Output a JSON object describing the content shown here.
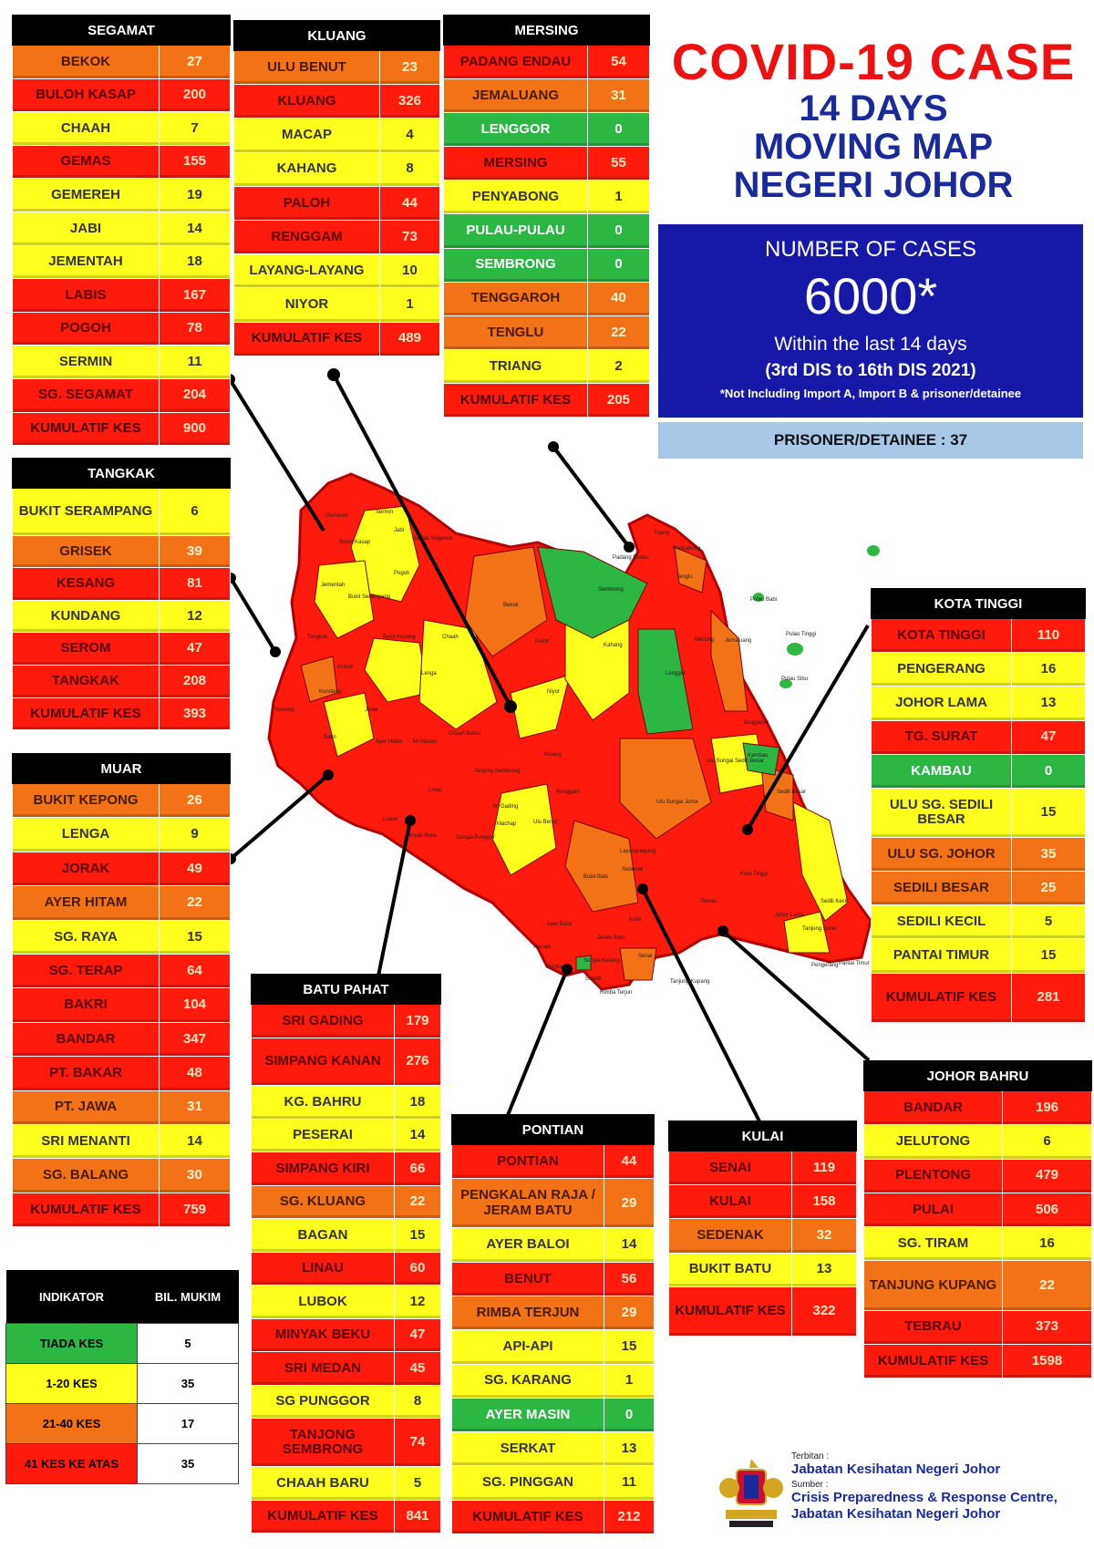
{
  "title": {
    "line1": "COVID-19 CASE",
    "line2": "14 DAYS",
    "line3": "MOVING MAP",
    "line4": "NEGERI JOHOR"
  },
  "number_box": {
    "heading": "NUMBER OF CASES",
    "count": "6000*",
    "period": "Within the last 14 days",
    "range": "(3rd DIS to 16th DIS 2021)",
    "note": "*Not Including Import A, Import B & prisoner/detainee"
  },
  "prisoner": "PRISONER/DETAINEE : 37",
  "colors": {
    "green": "#2cb642",
    "yellow": "#ffff1e",
    "orange": "#f47216",
    "red": "#ff1a0e",
    "box_blue": "#1717a8",
    "title_red": "#ee1111",
    "title_blue": "#1b2a9a"
  },
  "districts": [
    {
      "id": "segamat",
      "name": "SEGAMAT",
      "rows": [
        {
          "name": "BEKOK",
          "value": "27",
          "level": "orange"
        },
        {
          "name": "BULOH KASAP",
          "value": "200",
          "level": "red"
        },
        {
          "name": "CHAAH",
          "value": "7",
          "level": "yellow"
        },
        {
          "name": "GEMAS",
          "value": "155",
          "level": "red"
        },
        {
          "name": "GEMEREH",
          "value": "19",
          "level": "yellow"
        },
        {
          "name": "JABI",
          "value": "14",
          "level": "yellow"
        },
        {
          "name": "JEMENTAH",
          "value": "18",
          "level": "yellow"
        },
        {
          "name": "LABIS",
          "value": "167",
          "level": "red"
        },
        {
          "name": "POGOH",
          "value": "78",
          "level": "red"
        },
        {
          "name": "SERMIN",
          "value": "11",
          "level": "yellow"
        },
        {
          "name": "SG. SEGAMAT",
          "value": "204",
          "level": "red"
        }
      ],
      "total_label": "KUMULATIF KES",
      "total": "900"
    },
    {
      "id": "kluang",
      "name": "KLUANG",
      "rows": [
        {
          "name": "ULU BENUT",
          "value": "23",
          "level": "orange"
        },
        {
          "name": "KLUANG",
          "value": "326",
          "level": "red"
        },
        {
          "name": "MACAP",
          "value": "4",
          "level": "yellow"
        },
        {
          "name": "KAHANG",
          "value": "8",
          "level": "yellow"
        },
        {
          "name": "PALOH",
          "value": "44",
          "level": "red"
        },
        {
          "name": "RENGGAM",
          "value": "73",
          "level": "red"
        },
        {
          "name": "LAYANG-LAYANG",
          "value": "10",
          "level": "yellow"
        },
        {
          "name": "NIYOR",
          "value": "1",
          "level": "yellow"
        }
      ],
      "total_label": "KUMULATIF KES",
      "total": "489"
    },
    {
      "id": "mersing",
      "name": "MERSING",
      "rows": [
        {
          "name": "PADANG ENDAU",
          "value": "54",
          "level": "red"
        },
        {
          "name": "JEMALUANG",
          "value": "31",
          "level": "orange"
        },
        {
          "name": "LENGGOR",
          "value": "0",
          "level": "green"
        },
        {
          "name": "MERSING",
          "value": "55",
          "level": "red"
        },
        {
          "name": "PENYABONG",
          "value": "1",
          "level": "yellow"
        },
        {
          "name": "PULAU-PULAU",
          "value": "0",
          "level": "green"
        },
        {
          "name": "SEMBRONG",
          "value": "0",
          "level": "green"
        },
        {
          "name": "TENGGAROH",
          "value": "40",
          "level": "orange"
        },
        {
          "name": "TENGLU",
          "value": "22",
          "level": "orange"
        },
        {
          "name": "TRIANG",
          "value": "2",
          "level": "yellow"
        }
      ],
      "total_label": "KUMULATIF KES",
      "total": "205"
    },
    {
      "id": "tangkak",
      "name": "TANGKAK",
      "rows": [
        {
          "name": "BUKIT SERAMPANG",
          "value": "6",
          "level": "yellow"
        },
        {
          "name": "GRISEK",
          "value": "39",
          "level": "orange"
        },
        {
          "name": "KESANG",
          "value": "81",
          "level": "red"
        },
        {
          "name": "KUNDANG",
          "value": "12",
          "level": "yellow"
        },
        {
          "name": "SEROM",
          "value": "47",
          "level": "red"
        },
        {
          "name": "TANGKAK",
          "value": "208",
          "level": "red"
        }
      ],
      "total_label": "KUMULATIF KES",
      "total": "393"
    },
    {
      "id": "muar",
      "name": "MUAR",
      "rows": [
        {
          "name": "BUKIT KEPONG",
          "value": "26",
          "level": "orange"
        },
        {
          "name": "LENGA",
          "value": "9",
          "level": "yellow"
        },
        {
          "name": "JORAK",
          "value": "49",
          "level": "red"
        },
        {
          "name": "AYER HITAM",
          "value": "22",
          "level": "orange"
        },
        {
          "name": "SG. RAYA",
          "value": "15",
          "level": "yellow"
        },
        {
          "name": "SG. TERAP",
          "value": "64",
          "level": "red"
        },
        {
          "name": "BAKRI",
          "value": "104",
          "level": "red"
        },
        {
          "name": "BANDAR",
          "value": "347",
          "level": "red"
        },
        {
          "name": "PT. BAKAR",
          "value": "48",
          "level": "red"
        },
        {
          "name": "PT. JAWA",
          "value": "31",
          "level": "orange"
        },
        {
          "name": "SRI MENANTI",
          "value": "14",
          "level": "yellow"
        },
        {
          "name": "SG. BALANG",
          "value": "30",
          "level": "orange"
        }
      ],
      "total_label": "KUMULATIF KES",
      "total": "759"
    },
    {
      "id": "kota_tinggi",
      "name": "KOTA TINGGI",
      "rows": [
        {
          "name": "KOTA TINGGI",
          "value": "110",
          "level": "red"
        },
        {
          "name": "PENGERANG",
          "value": "16",
          "level": "yellow"
        },
        {
          "name": "JOHOR LAMA",
          "value": "13",
          "level": "yellow"
        },
        {
          "name": "TG. SURAT",
          "value": "47",
          "level": "red"
        },
        {
          "name": "KAMBAU",
          "value": "0",
          "level": "green"
        },
        {
          "name": "ULU SG. SEDILI BESAR",
          "value": "15",
          "level": "yellow"
        },
        {
          "name": "ULU SG. JOHOR",
          "value": "35",
          "level": "orange"
        },
        {
          "name": "SEDILI BESAR",
          "value": "25",
          "level": "orange"
        },
        {
          "name": "SEDILI KECIL",
          "value": "5",
          "level": "yellow"
        },
        {
          "name": "PANTAI TIMUR",
          "value": "15",
          "level": "yellow"
        }
      ],
      "total_label": "KUMULATIF KES",
      "total": "281"
    },
    {
      "id": "batu_pahat",
      "name": "BATU PAHAT",
      "rows": [
        {
          "name": "SRI GADING",
          "value": "179",
          "level": "red"
        },
        {
          "name": "SIMPANG KANAN",
          "value": "276",
          "level": "red"
        },
        {
          "name": "KG. BAHRU",
          "value": "18",
          "level": "yellow"
        },
        {
          "name": "PESERAI",
          "value": "14",
          "level": "yellow"
        },
        {
          "name": "SIMPANG KIRI",
          "value": "66",
          "level": "red"
        },
        {
          "name": "SG. KLUANG",
          "value": "22",
          "level": "orange"
        },
        {
          "name": "BAGAN",
          "value": "15",
          "level": "yellow"
        },
        {
          "name": "LINAU",
          "value": "60",
          "level": "red"
        },
        {
          "name": "LUBOK",
          "value": "12",
          "level": "yellow"
        },
        {
          "name": "MINYAK BEKU",
          "value": "47",
          "level": "red"
        },
        {
          "name": "SRI MEDAN",
          "value": "45",
          "level": "red"
        },
        {
          "name": "SG PUNGGOR",
          "value": "8",
          "level": "yellow"
        },
        {
          "name": "TANJONG SEMBRONG",
          "value": "74",
          "level": "red"
        },
        {
          "name": "CHAAH BARU",
          "value": "5",
          "level": "yellow"
        }
      ],
      "total_label": "KUMULATIF KES",
      "total": "841"
    },
    {
      "id": "pontian",
      "name": "PONTIAN",
      "rows": [
        {
          "name": "PONTIAN",
          "value": "44",
          "level": "red"
        },
        {
          "name": "PENGKALAN RAJA / JERAM BATU",
          "value": "29",
          "level": "orange"
        },
        {
          "name": "AYER BALOI",
          "value": "14",
          "level": "yellow"
        },
        {
          "name": "BENUT",
          "value": "56",
          "level": "red"
        },
        {
          "name": "RIMBA TERJUN",
          "value": "29",
          "level": "orange"
        },
        {
          "name": "API-API",
          "value": "15",
          "level": "yellow"
        },
        {
          "name": "SG. KARANG",
          "value": "1",
          "level": "yellow"
        },
        {
          "name": "AYER MASIN",
          "value": "0",
          "level": "green"
        },
        {
          "name": "SERKAT",
          "value": "13",
          "level": "yellow"
        },
        {
          "name": "SG. PINGGAN",
          "value": "11",
          "level": "yellow"
        }
      ],
      "total_label": "KUMULATIF KES",
      "total": "212"
    },
    {
      "id": "kulai",
      "name": "KULAI",
      "rows": [
        {
          "name": "SENAI",
          "value": "119",
          "level": "red"
        },
        {
          "name": "KULAI",
          "value": "158",
          "level": "red"
        },
        {
          "name": "SEDENAK",
          "value": "32",
          "level": "orange"
        },
        {
          "name": "BUKIT BATU",
          "value": "13",
          "level": "yellow"
        }
      ],
      "total_label": "KUMULATIF KES",
      "total": "322"
    },
    {
      "id": "johor_bahru",
      "name": "JOHOR BAHRU",
      "rows": [
        {
          "name": "BANDAR",
          "value": "196",
          "level": "red"
        },
        {
          "name": "JELUTONG",
          "value": "6",
          "level": "yellow"
        },
        {
          "name": "PLENTONG",
          "value": "479",
          "level": "red"
        },
        {
          "name": "PULAI",
          "value": "506",
          "level": "red"
        },
        {
          "name": "SG. TIRAM",
          "value": "16",
          "level": "yellow"
        },
        {
          "name": "TANJUNG KUPANG",
          "value": "22",
          "level": "orange"
        },
        {
          "name": "TEBRAU",
          "value": "373",
          "level": "red"
        }
      ],
      "total_label": "KUMULATIF KES",
      "total": "1598"
    }
  ],
  "legend": {
    "header_indicator": "INDIKATOR",
    "header_count": "BIL. MUKIM",
    "rows": [
      {
        "label": "TIADA KES",
        "count": "5",
        "level": "green"
      },
      {
        "label": "1-20 KES",
        "count": "35",
        "level": "yellow"
      },
      {
        "label": "21-40 KES",
        "count": "17",
        "level": "orange"
      },
      {
        "label": "41 KES KE ATAS",
        "count": "35",
        "level": "red"
      }
    ]
  },
  "map_labels": [
    "Gemereh",
    "Buloh Kasap",
    "Sermin",
    "Jabi",
    "Sungai Segamat",
    "Pogoh",
    "Jementah",
    "Bukit Serampang",
    "Bekok",
    "Sembrong",
    "Padang Endau",
    "Triang",
    "Penyabong",
    "Tenglu",
    "Pulau Babi",
    "Pulau Tinggi",
    "Pulau Sibu",
    "Tangkak",
    "Bukit Kepong",
    "Grisek",
    "Chaah",
    "Lenga",
    "Kahang",
    "Mersing",
    "Jemaluang",
    "Paloh",
    "Niyor",
    "Kundang",
    "Kesang",
    "Jorak",
    "Bakri",
    "Ayer Hitam",
    "Sri Medan",
    "Chaah Bahru",
    "Lenggor",
    "Tenggaroh",
    "Kluang",
    "Tanjong Sembrong",
    "Renggam",
    "Linau",
    "Sri Gading",
    "Machap",
    "Ulu Benut",
    "Kambau",
    "Ulu Sungai Sedili Besar",
    "Sedili Besar",
    "Ulu Sungai Johor",
    "Lubok",
    "Minyak Beku",
    "Sungai Punggor",
    "Layang-layang",
    "Bukit Batu",
    "Sedenak",
    "Kota Tinggi",
    "Sedili Kecil",
    "Ayer Baloi",
    "Api-api",
    "Pontian",
    "Kulai",
    "Senai",
    "Tebrau",
    "Johor Lama",
    "Tanjung Surat",
    "Pengerang",
    "Pantai Timur",
    "Tanjung Kupang",
    "Sungai Karang",
    "Serkat",
    "Rimba Terjun",
    "Jeram Batu"
  ],
  "footer": {
    "published_label": "Terbitan :",
    "publisher": "Jabatan Kesihatan Negeri Johor",
    "source_label": "Sumber :",
    "source_line1": "Crisis Preparedness & Response Centre,",
    "source_line2": "Jabatan Kesihatan Negeri Johor"
  }
}
